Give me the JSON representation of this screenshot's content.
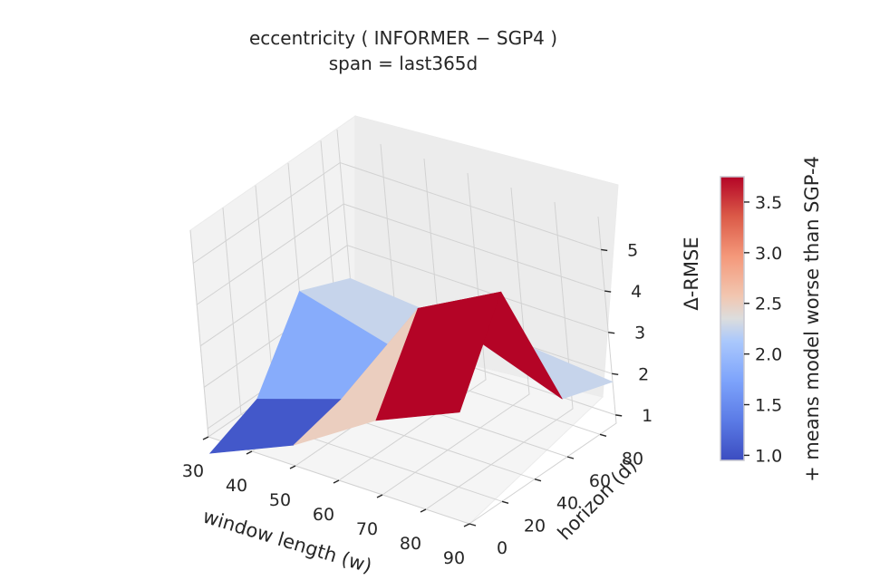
{
  "chart_data": {
    "type": "surface3d",
    "title": "eccentricity  ( INFORMER − SGP4 )",
    "subtitle": "span = last365d",
    "xlabel": "window length (w)",
    "ylabel": "horizon (d)",
    "zlabel": "Δ-RMSE",
    "x": [
      30,
      50,
      70,
      90
    ],
    "y": [
      0,
      30,
      60,
      90
    ],
    "z": [
      [
        0.4,
        1.3,
        2.6,
        3.5
      ],
      [
        0.9,
        1.6,
        4.5,
        5.6
      ],
      [
        2.7,
        2.1,
        3.0,
        2.2
      ],
      [
        2.2,
        2.0,
        2.0,
        1.8
      ]
    ],
    "x_ticks": [
      "30",
      "40",
      "50",
      "60",
      "70",
      "80",
      "90"
    ],
    "y_ticks": [
      "0",
      "20",
      "40",
      "60",
      "80"
    ],
    "z_ticks": [
      "1",
      "2",
      "3",
      "4",
      "5"
    ],
    "zlim": [
      0.8,
      5.8
    ],
    "colormap": "coolwarm",
    "colorbar": {
      "label": "+ means model worse than SGP-4",
      "ticks": [
        "1.0",
        "1.5",
        "2.0",
        "2.5",
        "3.0",
        "3.5"
      ],
      "range": [
        0.95,
        3.75
      ]
    },
    "grid": true
  }
}
